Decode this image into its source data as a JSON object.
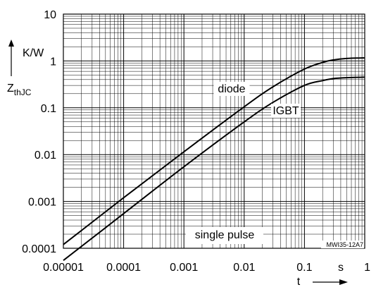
{
  "chart_data": {
    "type": "line",
    "xscale": "log",
    "yscale": "log",
    "xlim": [
      1e-05,
      1
    ],
    "ylim": [
      0.0001,
      10
    ],
    "grid": true,
    "xlabel": "t",
    "xunit": "s",
    "ylabel_main": "Z",
    "ylabel_sub": "thJC",
    "yunit": "K/W",
    "x_tick_labels": [
      "0.00001",
      "0.0001",
      "0.001",
      "0.01",
      "0.1",
      "1"
    ],
    "y_tick_labels": [
      "0.0001",
      "0.001",
      "0.01",
      "0.1",
      "1",
      "10"
    ],
    "annotation": "single pulse",
    "code": "MWI35-12A7",
    "series": [
      {
        "name": "diode",
        "x": [
          1e-05,
          0.0001,
          0.001,
          0.01,
          0.03,
          0.1,
          0.2,
          0.3,
          0.5,
          1
        ],
        "y": [
          0.00012,
          0.0012,
          0.0115,
          0.105,
          0.28,
          0.67,
          0.93,
          1.05,
          1.13,
          1.16
        ]
      },
      {
        "name": "IGBT",
        "x": [
          1e-05,
          0.0001,
          0.001,
          0.01,
          0.03,
          0.1,
          0.2,
          0.3,
          0.5,
          1
        ],
        "y": [
          5.5e-05,
          0.00055,
          0.0055,
          0.05,
          0.13,
          0.3,
          0.38,
          0.42,
          0.44,
          0.45
        ]
      }
    ]
  }
}
